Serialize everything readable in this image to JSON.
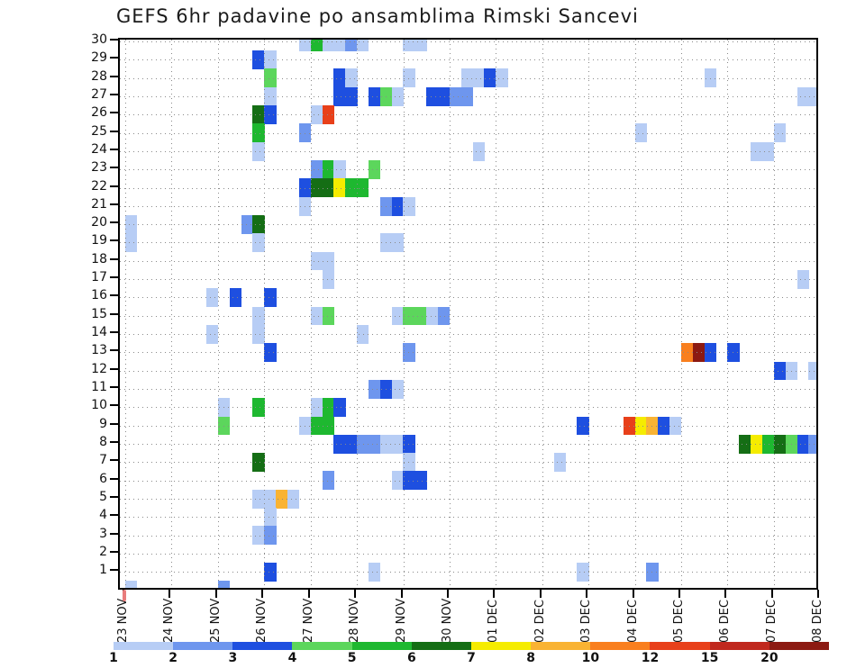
{
  "chart_data": {
    "type": "heatmap",
    "title": "GEFS 6hr padavine po ansamblima Rimski Sancevi",
    "x_tick_labels": [
      "23 NOV",
      "24 NOV",
      "25 NOV",
      "26 NOV",
      "27 NOV",
      "28 NOV",
      "29 NOV",
      "30 NOV",
      "01 DEC",
      "02 DEC",
      "03 DEC",
      "04 DEC",
      "05 DEC",
      "06 DEC",
      "07 DEC",
      "08 DEC"
    ],
    "y_tick_labels": [
      "1",
      "2",
      "3",
      "4",
      "5",
      "6",
      "7",
      "8",
      "9",
      "10",
      "11",
      "12",
      "13",
      "14",
      "15",
      "16",
      "17",
      "18",
      "19",
      "20",
      "21",
      "22",
      "23",
      "24",
      "25",
      "26",
      "27",
      "28",
      "29",
      "30"
    ],
    "columns_per_day": 4,
    "n_columns": 60,
    "grid": "dotted",
    "colorbar": {
      "labels": [
        "1",
        "2",
        "3",
        "4",
        "5",
        "6",
        "7",
        "8",
        "10",
        "12",
        "15",
        "20"
      ],
      "colors": [
        "#b7cdf5",
        "#6e96ee",
        "#1e4fe0",
        "#5cd65c",
        "#1eb830",
        "#156e15",
        "#f5ec00",
        "#f9b333",
        "#f97f1e",
        "#e8401a",
        "#c0281e",
        "#8c1a12"
      ]
    },
    "cells": [
      [
        30,
        15,
        1
      ],
      [
        30,
        16,
        5
      ],
      [
        30,
        17,
        1
      ],
      [
        30,
        18,
        1
      ],
      [
        30,
        19,
        2
      ],
      [
        30,
        20,
        1
      ],
      [
        30,
        24,
        1
      ],
      [
        30,
        25,
        1
      ],
      [
        29,
        11,
        3
      ],
      [
        29,
        12,
        1
      ],
      [
        28,
        12,
        4
      ],
      [
        28,
        18,
        3
      ],
      [
        28,
        19,
        1
      ],
      [
        28,
        24,
        1
      ],
      [
        28,
        29,
        1
      ],
      [
        28,
        30,
        1
      ],
      [
        28,
        31,
        3
      ],
      [
        28,
        32,
        1
      ],
      [
        28,
        50,
        1
      ],
      [
        27,
        12,
        1
      ],
      [
        27,
        18,
        3
      ],
      [
        27,
        19,
        3
      ],
      [
        27,
        21,
        3
      ],
      [
        27,
        22,
        4
      ],
      [
        27,
        23,
        1
      ],
      [
        27,
        26,
        3
      ],
      [
        27,
        27,
        3
      ],
      [
        27,
        28,
        2
      ],
      [
        27,
        29,
        2
      ],
      [
        27,
        58,
        1
      ],
      [
        27,
        59,
        1
      ],
      [
        26,
        11,
        6
      ],
      [
        26,
        12,
        3
      ],
      [
        26,
        16,
        1
      ],
      [
        26,
        17,
        10
      ],
      [
        25,
        11,
        5
      ],
      [
        25,
        15,
        2
      ],
      [
        25,
        44,
        1
      ],
      [
        25,
        56,
        1
      ],
      [
        24,
        11,
        1
      ],
      [
        24,
        30,
        1
      ],
      [
        24,
        54,
        1
      ],
      [
        24,
        55,
        1
      ],
      [
        23,
        16,
        2
      ],
      [
        23,
        17,
        5
      ],
      [
        23,
        18,
        1
      ],
      [
        23,
        21,
        4
      ],
      [
        22,
        15,
        3
      ],
      [
        22,
        16,
        6
      ],
      [
        22,
        17,
        6
      ],
      [
        22,
        18,
        7
      ],
      [
        22,
        19,
        5
      ],
      [
        22,
        20,
        5
      ],
      [
        21,
        15,
        1
      ],
      [
        21,
        22,
        2
      ],
      [
        21,
        23,
        3
      ],
      [
        21,
        24,
        1
      ],
      [
        20,
        0,
        1
      ],
      [
        20,
        10,
        2
      ],
      [
        20,
        11,
        6
      ],
      [
        19,
        0,
        1
      ],
      [
        19,
        11,
        1
      ],
      [
        19,
        22,
        1
      ],
      [
        19,
        23,
        1
      ],
      [
        18,
        16,
        1
      ],
      [
        18,
        17,
        1
      ],
      [
        17,
        17,
        1
      ],
      [
        17,
        58,
        1
      ],
      [
        16,
        7,
        1
      ],
      [
        16,
        9,
        3
      ],
      [
        16,
        12,
        3
      ],
      [
        15,
        11,
        1
      ],
      [
        15,
        16,
        1
      ],
      [
        15,
        17,
        4
      ],
      [
        15,
        23,
        1
      ],
      [
        15,
        24,
        4
      ],
      [
        15,
        25,
        4
      ],
      [
        15,
        26,
        1
      ],
      [
        15,
        27,
        2
      ],
      [
        14,
        7,
        1
      ],
      [
        14,
        11,
        1
      ],
      [
        14,
        20,
        1
      ],
      [
        13,
        12,
        3
      ],
      [
        13,
        24,
        2
      ],
      [
        13,
        48,
        9
      ],
      [
        13,
        49,
        12
      ],
      [
        13,
        50,
        3
      ],
      [
        13,
        52,
        3
      ],
      [
        12,
        56,
        3
      ],
      [
        12,
        57,
        1
      ],
      [
        12,
        59,
        1
      ],
      [
        11,
        21,
        2
      ],
      [
        11,
        22,
        3
      ],
      [
        11,
        23,
        1
      ],
      [
        10,
        8,
        1
      ],
      [
        10,
        11,
        5
      ],
      [
        10,
        16,
        1
      ],
      [
        10,
        17,
        5
      ],
      [
        10,
        18,
        3
      ],
      [
        9,
        8,
        4
      ],
      [
        9,
        15,
        1
      ],
      [
        9,
        16,
        5
      ],
      [
        9,
        17,
        5
      ],
      [
        9,
        39,
        3
      ],
      [
        9,
        43,
        10
      ],
      [
        9,
        44,
        7
      ],
      [
        9,
        45,
        8
      ],
      [
        9,
        46,
        3
      ],
      [
        9,
        47,
        1
      ],
      [
        8,
        18,
        3
      ],
      [
        8,
        19,
        3
      ],
      [
        8,
        20,
        2
      ],
      [
        8,
        21,
        2
      ],
      [
        8,
        22,
        1
      ],
      [
        8,
        23,
        1
      ],
      [
        8,
        24,
        3
      ],
      [
        8,
        53,
        6
      ],
      [
        8,
        54,
        7
      ],
      [
        8,
        55,
        5
      ],
      [
        8,
        56,
        6
      ],
      [
        8,
        57,
        4
      ],
      [
        8,
        58,
        3
      ],
      [
        8,
        59,
        2
      ],
      [
        7,
        11,
        6
      ],
      [
        7,
        24,
        1
      ],
      [
        7,
        37,
        1
      ],
      [
        6,
        17,
        2
      ],
      [
        6,
        23,
        1
      ],
      [
        6,
        24,
        3
      ],
      [
        6,
        25,
        3
      ],
      [
        5,
        11,
        1
      ],
      [
        5,
        12,
        1
      ],
      [
        5,
        13,
        8
      ],
      [
        5,
        14,
        1
      ],
      [
        4,
        12,
        1
      ],
      [
        3,
        11,
        1
      ],
      [
        3,
        12,
        2
      ],
      [
        1,
        12,
        3
      ],
      [
        1,
        21,
        1
      ],
      [
        1,
        39,
        1
      ],
      [
        1,
        45,
        2
      ],
      [
        0,
        0,
        1
      ],
      [
        0,
        8,
        2
      ]
    ]
  }
}
